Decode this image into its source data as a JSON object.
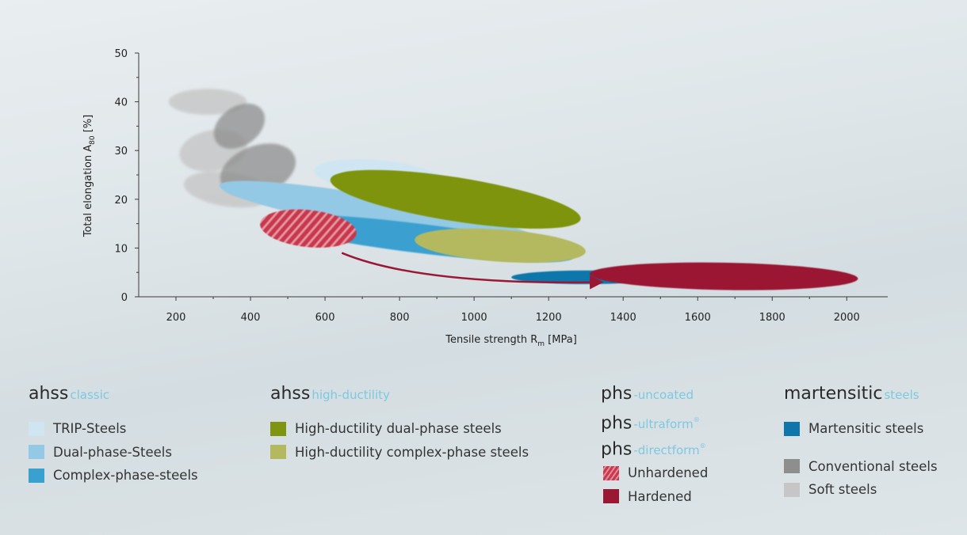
{
  "chart_data": {
    "type": "scatter",
    "xlabel": "Tensile strength R",
    "xlabel_sub": "m",
    "xlabel_unit": " [MPa]",
    "ylabel": "Total elongation A",
    "ylabel_sub": "80",
    "ylabel_unit": " [%]",
    "x_ticks": [
      200,
      400,
      600,
      800,
      1000,
      1200,
      1400,
      1600,
      1800,
      2000
    ],
    "y_ticks": [
      0,
      10,
      20,
      30,
      40,
      50
    ],
    "xlim": [
      100,
      2110
    ],
    "ylim": [
      0,
      50
    ],
    "grid": false,
    "regions": [
      {
        "name": "Soft steels",
        "color": "#c6c6c6",
        "opacity": 0.8,
        "blur": 1.5,
        "ellipses": [
          {
            "cx": 285,
            "cy": 40,
            "rx": 35,
            "ry": 8,
            "angle": 90
          },
          {
            "cx": 300,
            "cy": 30,
            "rx": 55,
            "ry": 7,
            "angle": 80
          },
          {
            "cx": 340,
            "cy": 22,
            "rx": 120,
            "ry": 3.5,
            "angle": 8
          }
        ]
      },
      {
        "name": "Conventional steels",
        "color": "#8e8e8e",
        "opacity": 0.75,
        "blur": 1.5,
        "ellipses": [
          {
            "cx": 370,
            "cy": 35,
            "rx": 75,
            "ry": 4,
            "angle": -35
          },
          {
            "cx": 420,
            "cy": 26,
            "rx": 105,
            "ry": 5,
            "angle": -20
          }
        ]
      },
      {
        "name": "Dual-phase-Steels",
        "color": "#93c9e4",
        "opacity": 1,
        "blur": 0.8,
        "ellipses": [
          {
            "cx": 750,
            "cy": 17,
            "rx": 440,
            "ry": 3.5,
            "angle": 10
          }
        ]
      },
      {
        "name": "TRIP-Steels",
        "color": "#cfe6f2",
        "opacity": 1,
        "blur": 0.8,
        "ellipses": [
          {
            "cx": 750,
            "cy": 24.5,
            "rx": 180,
            "ry": 3.5,
            "angle": 6
          }
        ]
      },
      {
        "name": "Complex-phase-steels",
        "color": "#3aa0d0",
        "opacity": 1,
        "blur": 0.8,
        "ellipses": [
          {
            "cx": 850,
            "cy": 12,
            "rx": 420,
            "ry": 3,
            "angle": 7
          }
        ]
      },
      {
        "name": "High-ductility dual-phase steels",
        "color": "#7f9410",
        "opacity": 1,
        "blur": 0.6,
        "ellipses": [
          {
            "cx": 950,
            "cy": 20,
            "rx": 340,
            "ry": 4.5,
            "angle": 9
          }
        ]
      },
      {
        "name": "High-ductility complex-phase steels",
        "color": "#b4b960",
        "opacity": 1,
        "blur": 0.6,
        "ellipses": [
          {
            "cx": 1070,
            "cy": 10.5,
            "rx": 230,
            "ry": 3.3,
            "angle": 4
          }
        ]
      },
      {
        "name": "Martensitic steels",
        "color": "#0f76ab",
        "opacity": 1,
        "blur": 0.6,
        "ellipses": [
          {
            "cx": 1300,
            "cy": 4,
            "rx": 200,
            "ry": 1.4,
            "angle": 0
          }
        ]
      },
      {
        "name": "Unhardened",
        "color": "hatch",
        "opacity": 1,
        "blur": 0.4,
        "ellipses": [
          {
            "cx": 555,
            "cy": 14,
            "rx": 130,
            "ry": 3.8,
            "angle": 6
          }
        ]
      },
      {
        "name": "Hardened",
        "color": "#9a1833",
        "opacity": 1,
        "blur": 0.6,
        "ellipses": [
          {
            "cx": 1670,
            "cy": 4.2,
            "rx": 360,
            "ry": 2.8,
            "angle": 1
          }
        ]
      }
    ],
    "arrow": {
      "from": [
        645,
        9
      ],
      "to": [
        1340,
        3
      ],
      "color": "#9a1833"
    }
  },
  "legend": {
    "ahss_classic": {
      "title": "ahss",
      "suffix": "classic",
      "items": [
        {
          "label": "TRIP-Steels",
          "color": "#cfe6f2"
        },
        {
          "label": "Dual-phase-Steels",
          "color": "#93c9e4"
        },
        {
          "label": "Complex-phase-steels",
          "color": "#3aa0d0"
        }
      ]
    },
    "ahss_high_ductility": {
      "title": "ahss",
      "suffix": "high-ductility",
      "items": [
        {
          "label": "High-ductility dual-phase steels",
          "color": "#7f9410"
        },
        {
          "label": "High-ductility complex-phase steels",
          "color": "#b4b960"
        }
      ]
    },
    "phs": {
      "titles": [
        {
          "title": "phs",
          "suffix": "-uncoated",
          "sup": ""
        },
        {
          "title": "phs",
          "suffix": "-ultraform",
          "sup": "®"
        },
        {
          "title": "phs",
          "suffix": "-directform",
          "sup": "®"
        }
      ],
      "items": [
        {
          "label": "Unhardened",
          "color": "#c8394e"
        },
        {
          "label": "Hardened",
          "color": "#9a1833"
        }
      ]
    },
    "martensitic": {
      "title": "martensitic",
      "suffix": "steels",
      "items": [
        {
          "label": "Martensitic steels",
          "color": "#0f76ab"
        }
      ],
      "extra_items": [
        {
          "label": "Conventional steels",
          "color": "#8e8e8e"
        },
        {
          "label": "Soft steels",
          "color": "#c6c6c6"
        }
      ]
    }
  }
}
